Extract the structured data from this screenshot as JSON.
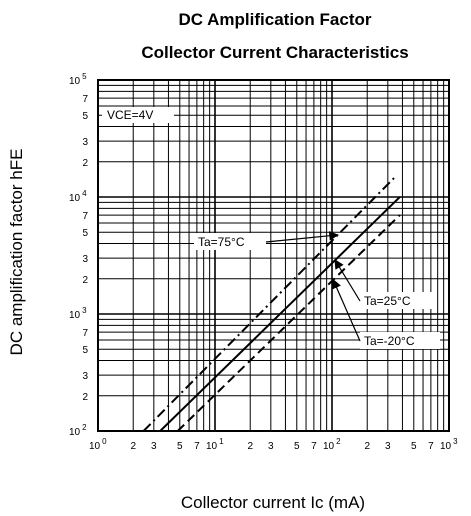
{
  "chart_data": {
    "type": "line",
    "title": "DC Amplification Factor",
    "subtitle": "Collector Current Characteristics",
    "xlabel": "Collector current  Ic  (mA)",
    "ylabel": "DC amplification factor  hFE",
    "xscale": "log",
    "yscale": "log",
    "xlim": [
      1,
      1000
    ],
    "ylim": [
      100,
      100000
    ],
    "grid": true,
    "x_ticks": {
      "decade_labels": [
        {
          "base": "10",
          "exp": "0"
        },
        {
          "base": "10",
          "exp": "1"
        },
        {
          "base": "10",
          "exp": "2"
        },
        {
          "base": "10",
          "exp": "3"
        }
      ],
      "minor_labels": [
        "2",
        "3",
        "5",
        "7"
      ]
    },
    "y_ticks": {
      "decade_labels": [
        {
          "base": "10",
          "exp": "2"
        },
        {
          "base": "10",
          "exp": "3"
        },
        {
          "base": "10",
          "exp": "4"
        },
        {
          "base": "10",
          "exp": "5"
        }
      ],
      "minor_labels": [
        "2",
        "3",
        "5",
        "7"
      ]
    },
    "condition_label": "VCE=4V",
    "series": [
      {
        "name": "Ta=75°C",
        "style": "dashdot",
        "x": [
          2.45,
          350
        ],
        "y": [
          100,
          15000
        ]
      },
      {
        "name": "Ta=25°C",
        "style": "solid",
        "x": [
          3.4,
          380
        ],
        "y": [
          100,
          10000
        ]
      },
      {
        "name": "Ta=-20°C",
        "style": "dashed",
        "x": [
          4.8,
          380
        ],
        "y": [
          100,
          7000
        ]
      }
    ],
    "annotations": [
      {
        "text": "Ta=75°C",
        "series": 0
      },
      {
        "text": "Ta=25°C",
        "series": 1
      },
      {
        "text": "Ta=-20°C",
        "series": 2
      }
    ]
  }
}
